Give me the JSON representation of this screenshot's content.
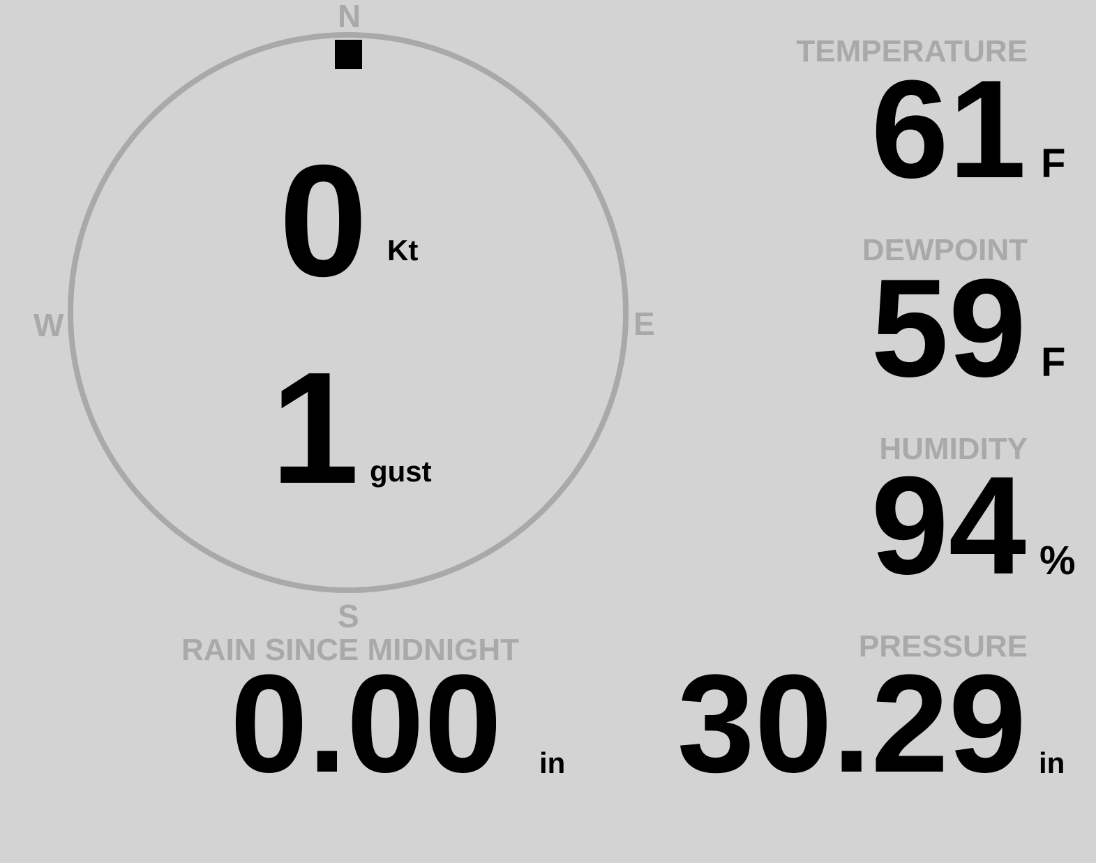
{
  "compass": {
    "north": "N",
    "south": "S",
    "east": "E",
    "west": "W",
    "wind_direction_deg": 0,
    "ring_color": "#a9a9a9",
    "marker_color": "#000000"
  },
  "wind": {
    "speed": "0",
    "speed_unit": "Kt",
    "gust": "1",
    "gust_unit": "gust"
  },
  "temperature": {
    "label": "TEMPERATURE",
    "value": "61",
    "unit": "F"
  },
  "dewpoint": {
    "label": "DEWPOINT",
    "value": "59",
    "unit": "F"
  },
  "humidity": {
    "label": "HUMIDITY",
    "value": "94",
    "unit": "%"
  },
  "rain": {
    "label": "RAIN SINCE MIDNIGHT",
    "value": "0.00",
    "unit": "in"
  },
  "pressure": {
    "label": "PRESSURE",
    "value": "30.29",
    "unit": "in"
  },
  "colors": {
    "background": "#d3d3d3",
    "label": "#a9a9a9",
    "value": "#000000"
  }
}
